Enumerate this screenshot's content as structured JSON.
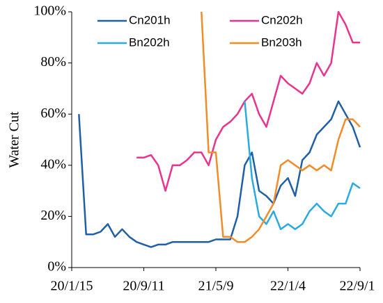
{
  "chart_data": {
    "type": "line",
    "y_label": "Water Cut",
    "x": [
      "2020-01-15",
      "2020-02-08",
      "2020-03-03",
      "2020-03-27",
      "2020-04-20",
      "2020-05-14",
      "2020-06-07",
      "2020-07-01",
      "2020-07-25",
      "2020-08-18",
      "2020-09-11",
      "2020-10-05",
      "2020-10-29",
      "2020-11-22",
      "2020-12-16",
      "2021-01-09",
      "2021-02-02",
      "2021-02-26",
      "2021-03-22",
      "2021-04-15",
      "2021-05-09",
      "2021-06-02",
      "2021-06-26",
      "2021-07-20",
      "2021-08-13",
      "2021-09-06",
      "2021-09-30",
      "2021-10-24",
      "2021-11-17",
      "2021-12-11",
      "2022-01-04",
      "2022-01-28",
      "2022-02-21",
      "2022-03-17",
      "2022-04-10",
      "2022-05-04",
      "2022-05-28",
      "2022-06-21",
      "2022-07-15",
      "2022-08-08",
      "2022-09-01"
    ],
    "series": [
      {
        "name": "Cn201h",
        "color": "#1f5fa8",
        "values": [
          null,
          60,
          13,
          13,
          14,
          17,
          12,
          15,
          12,
          10,
          9,
          8,
          9,
          9,
          10,
          10,
          10,
          10,
          10,
          10,
          11,
          11,
          11,
          20,
          40,
          45,
          30,
          28,
          25,
          32,
          35,
          28,
          42,
          45,
          52,
          55,
          58,
          65,
          60,
          55,
          47
        ]
      },
      {
        "name": "Cn202h",
        "color": "#e8348e",
        "values": [
          null,
          null,
          null,
          null,
          null,
          null,
          null,
          null,
          null,
          43,
          43,
          44,
          40,
          30,
          40,
          40,
          42,
          45,
          45,
          40,
          50,
          55,
          57,
          60,
          65,
          68,
          60,
          55,
          65,
          75,
          72,
          70,
          68,
          72,
          80,
          75,
          80,
          100,
          95,
          88,
          88
        ]
      },
      {
        "name": "Bn202h",
        "color": "#29abe2",
        "values": [
          null,
          null,
          null,
          null,
          null,
          null,
          null,
          null,
          null,
          null,
          null,
          null,
          null,
          null,
          null,
          null,
          null,
          null,
          null,
          null,
          null,
          null,
          null,
          null,
          65,
          35,
          20,
          17,
          22,
          15,
          17,
          15,
          17,
          22,
          25,
          22,
          20,
          25,
          25,
          33,
          31
        ]
      },
      {
        "name": "Bn203h",
        "color": "#f28c28",
        "values": [
          null,
          null,
          null,
          null,
          null,
          null,
          null,
          null,
          null,
          null,
          null,
          null,
          null,
          null,
          null,
          null,
          null,
          null,
          100,
          45,
          45,
          12,
          12,
          10,
          10,
          12,
          15,
          20,
          25,
          40,
          42,
          40,
          38,
          40,
          38,
          40,
          38,
          50,
          58,
          58,
          55
        ]
      }
    ],
    "xlim": [
      "2020-01-15",
      "2022-09-01"
    ],
    "xticks": [
      {
        "value": "2020-01-15",
        "label": "20/1/15"
      },
      {
        "value": "2020-09-11",
        "label": "20/9/11"
      },
      {
        "value": "2021-05-09",
        "label": "21/5/9"
      },
      {
        "value": "2022-01-04",
        "label": "22/1/4"
      },
      {
        "value": "2022-09-01",
        "label": "22/9/1"
      }
    ],
    "ylim": [
      0,
      100
    ],
    "yticks": [
      {
        "value": 0,
        "label": "0%"
      },
      {
        "value": 20,
        "label": "20%"
      },
      {
        "value": 40,
        "label": "40%"
      },
      {
        "value": 60,
        "label": "60%"
      },
      {
        "value": 80,
        "label": "80%"
      },
      {
        "value": 100,
        "label": "100%"
      }
    ],
    "grid": false
  }
}
